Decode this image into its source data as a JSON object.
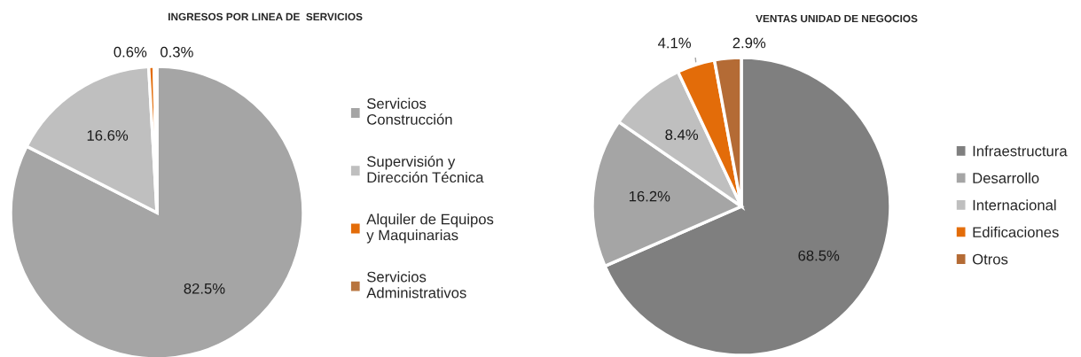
{
  "chart_data": [
    {
      "type": "pie",
      "title": "INGRESOS POR LINEA DE  SERVICIOS",
      "categories": [
        "Servicios Construcción",
        "Supervisión y Dirección Técnica",
        "Alquiler de Equipos y Maquinarias",
        "Servicios Administrativos"
      ],
      "values": [
        82.5,
        16.6,
        0.6,
        0.3
      ],
      "value_labels": [
        "82.5%",
        "16.6%",
        "0.6%",
        "0.3%"
      ],
      "colors": [
        "#a5a5a5",
        "#bfbfbf",
        "#e36c09",
        "#b8743e"
      ],
      "legend": "right"
    },
    {
      "type": "pie",
      "title": "VENTAS UNIDAD DE NEGOCIOS",
      "categories": [
        "Infraestructura",
        "Desarrollo",
        "Internacional",
        "Edificaciones",
        "Otros"
      ],
      "values": [
        68.5,
        16.2,
        8.4,
        4.1,
        2.9
      ],
      "value_labels": [
        "68.5%",
        "16.2%",
        "8.4%",
        "4.1%",
        "2.9%"
      ],
      "colors": [
        "#7f7f7f",
        "#a5a5a5",
        "#bfbfbf",
        "#e36c09",
        "#b46b35"
      ],
      "legend": "right"
    }
  ]
}
